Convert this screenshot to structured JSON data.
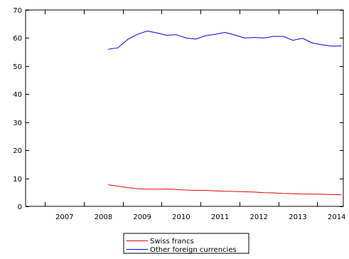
{
  "chart_data": {
    "type": "line",
    "title": "",
    "xlabel": "",
    "ylabel": "",
    "xlim": [
      2006.5,
      2014.67
    ],
    "ylim": [
      0,
      70
    ],
    "y_ticks": [
      0,
      10,
      20,
      30,
      40,
      50,
      60,
      70
    ],
    "x_ticks": [
      2007,
      2008,
      2009,
      2010,
      2011,
      2012,
      2013,
      2014
    ],
    "x_tick_labels": [
      "2007",
      "2008",
      "2009",
      "2010",
      "2011",
      "2012",
      "2013",
      "2014"
    ],
    "grid": false,
    "legend_position": "bottom-center",
    "x": [
      "2008Q3",
      "2008Q4",
      "2009Q1",
      "2009Q2",
      "2009Q3",
      "2009Q4",
      "2010Q1",
      "2010Q2",
      "2010Q3",
      "2010Q4",
      "2011Q1",
      "2011Q2",
      "2011Q3",
      "2011Q4",
      "2012Q1",
      "2012Q2",
      "2012Q3",
      "2012Q4",
      "2013Q1",
      "2013Q2",
      "2013Q3",
      "2013Q4",
      "2014Q1",
      "2014Q2",
      "2014Q3"
    ],
    "series": [
      {
        "name": "Swiss francs",
        "color": "#e8000b",
        "values": [
          7.7,
          7.2,
          6.7,
          6.3,
          6.1,
          6.1,
          6.2,
          6.0,
          5.8,
          5.7,
          5.7,
          5.5,
          5.4,
          5.3,
          5.2,
          5.1,
          4.9,
          4.8,
          4.6,
          4.5,
          4.4,
          4.4,
          4.3,
          4.2,
          4.1
        ]
      },
      {
        "name": "Other foreign currencies",
        "color": "#0000e0",
        "values": [
          56.0,
          56.5,
          59.5,
          61.3,
          62.5,
          61.8,
          61.0,
          61.2,
          60.0,
          59.6,
          60.8,
          61.3,
          62.0,
          61.1,
          60.0,
          60.2,
          60.0,
          60.6,
          60.6,
          59.2,
          59.9,
          58.2,
          57.6,
          57.1,
          57.2
        ]
      }
    ]
  }
}
